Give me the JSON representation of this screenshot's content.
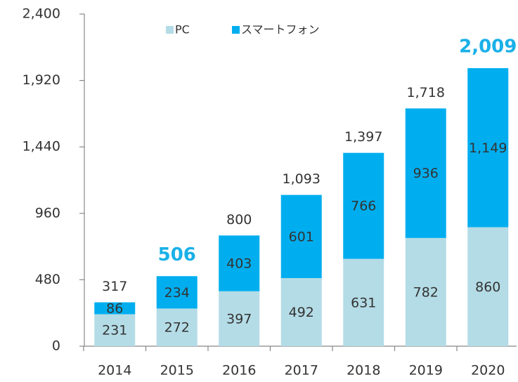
{
  "chart_data": {
    "type": "stacked_bar",
    "categories": [
      "2014",
      "2015",
      "2016",
      "2017",
      "2018",
      "2019",
      "2020"
    ],
    "series": [
      {
        "name": "PC",
        "color": "#b4dce6",
        "values": [
          231,
          272,
          397,
          492,
          631,
          782,
          860
        ]
      },
      {
        "name": "スマートフォン",
        "color": "#00aeef",
        "values": [
          86,
          234,
          403,
          601,
          766,
          936,
          1149
        ],
        "value_labels": [
          "86",
          "234",
          "403",
          "601",
          "766",
          "936",
          "1,149"
        ]
      }
    ],
    "totals": [
      317,
      506,
      800,
      1093,
      1397,
      1718,
      2009
    ],
    "totals_labels": [
      "317",
      "506",
      "800",
      "1,093",
      "1,397",
      "1,718",
      "2,009"
    ],
    "highlighted": [
      "2015",
      "2020"
    ],
    "highlight_color": "#1ab0e8",
    "ylim": [
      0,
      2400
    ],
    "yticks": [
      0,
      480,
      960,
      {
        "value": 1440,
        "label": "1,440"
      },
      {
        "value": 1920,
        "label": "1,920"
      },
      {
        "value": 2400,
        "label": "2,400"
      }
    ],
    "legend": "top"
  }
}
